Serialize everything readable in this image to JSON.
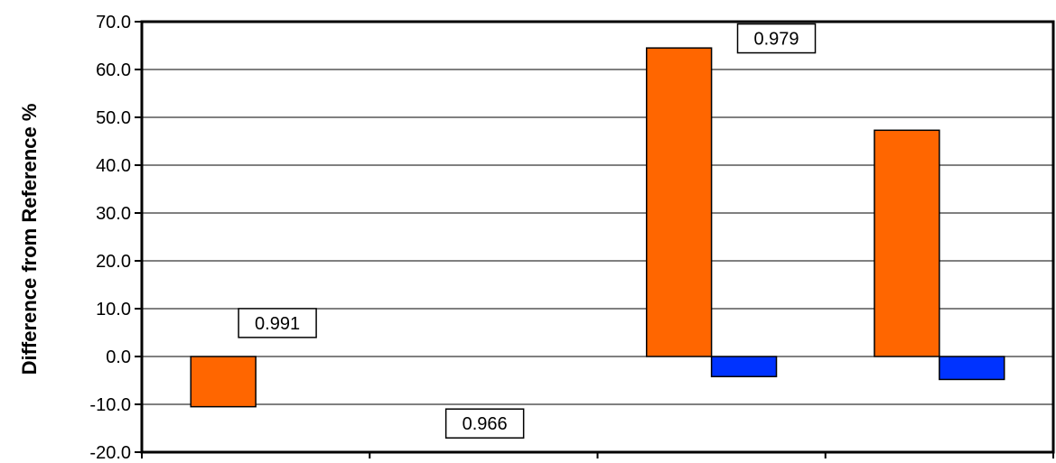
{
  "chart_data": {
    "type": "bar",
    "title": "",
    "xlabel": "",
    "ylabel": "Difference from Reference %",
    "ylim": [
      -20,
      70
    ],
    "yticks": [
      "-20.0",
      "-10.0",
      "0.0",
      "10.0",
      "20.0",
      "30.0",
      "40.0",
      "50.0",
      "60.0",
      "70.0"
    ],
    "grid": true,
    "categories": [
      "",
      "",
      "",
      ""
    ],
    "series": [
      {
        "color": "#ff6600",
        "values": [
          -10.5,
          null,
          64.5,
          47.3
        ]
      },
      {
        "color": "#0033ff",
        "values": [
          null,
          null,
          -4.2,
          -4.8
        ]
      }
    ],
    "annotations": [
      "0.991",
      "0.966",
      "0.979",
      ""
    ]
  }
}
